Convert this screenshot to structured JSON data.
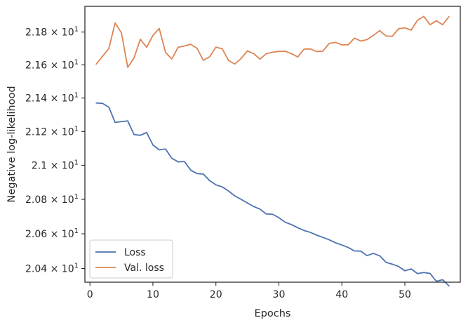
{
  "chart_data": {
    "type": "line",
    "xlabel": "Epochs",
    "ylabel": "Negative log-likelihood",
    "xlim": [
      -0.8,
      58.8
    ],
    "ylim": [
      20.322,
      21.958
    ],
    "yscale": "log",
    "grid": false,
    "legend_position": "lower-left",
    "x_ticks": [
      0,
      10,
      20,
      30,
      40,
      50
    ],
    "x_tick_labels": [
      "0",
      "10",
      "20",
      "30",
      "40",
      "50"
    ],
    "y_ticks": [
      20.4,
      20.6,
      20.8,
      21.0,
      21.2,
      21.4,
      21.6,
      21.8
    ],
    "y_tick_labels": [
      {
        "mantissa": "2.04",
        "sep": "×",
        "base": "10",
        "exp": "1"
      },
      {
        "mantissa": "2.06",
        "sep": "×",
        "base": "10",
        "exp": "1"
      },
      {
        "mantissa": "2.08",
        "sep": "×",
        "base": "10",
        "exp": "1"
      },
      {
        "mantissa": "2.1",
        "sep": "×",
        "base": "10",
        "exp": "1"
      },
      {
        "mantissa": "2.12",
        "sep": "×",
        "base": "10",
        "exp": "1"
      },
      {
        "mantissa": "2.14",
        "sep": "×",
        "base": "10",
        "exp": "1"
      },
      {
        "mantissa": "2.16",
        "sep": "×",
        "base": "10",
        "exp": "1"
      },
      {
        "mantissa": "2.18",
        "sep": "×",
        "base": "10",
        "exp": "1"
      }
    ],
    "x": [
      1,
      2,
      3,
      4,
      5,
      6,
      7,
      8,
      9,
      10,
      11,
      12,
      13,
      14,
      15,
      16,
      17,
      18,
      19,
      20,
      21,
      22,
      23,
      24,
      25,
      26,
      27,
      28,
      29,
      30,
      31,
      32,
      33,
      34,
      35,
      36,
      37,
      38,
      39,
      40,
      41,
      42,
      43,
      44,
      45,
      46,
      47,
      48,
      49,
      50,
      51,
      52,
      53,
      54,
      55,
      56,
      57
    ],
    "series": [
      {
        "name": "Loss",
        "color": "#4c72b0",
        "values": [
          21.37,
          21.368,
          21.345,
          21.254,
          21.259,
          21.263,
          21.182,
          21.177,
          21.194,
          21.12,
          21.091,
          21.096,
          21.041,
          21.02,
          21.022,
          20.971,
          20.951,
          20.948,
          20.91,
          20.885,
          20.873,
          20.849,
          20.82,
          20.8,
          20.779,
          20.758,
          20.743,
          20.715,
          20.713,
          20.693,
          20.667,
          20.653,
          20.635,
          20.619,
          20.608,
          20.592,
          20.579,
          20.565,
          20.548,
          20.535,
          20.521,
          20.501,
          20.5,
          20.474,
          20.487,
          20.473,
          20.436,
          20.425,
          20.412,
          20.387,
          20.398,
          20.371,
          20.377,
          20.372,
          20.327,
          20.336,
          20.301
        ]
      },
      {
        "name": "Val. loss",
        "color": "#dd8452",
        "values": [
          21.605,
          21.652,
          21.699,
          21.856,
          21.795,
          21.585,
          21.642,
          21.756,
          21.707,
          21.779,
          21.822,
          21.676,
          21.636,
          21.707,
          21.715,
          21.725,
          21.701,
          21.628,
          21.649,
          21.708,
          21.698,
          21.627,
          21.605,
          21.639,
          21.685,
          21.668,
          21.635,
          21.668,
          21.677,
          21.682,
          21.683,
          21.668,
          21.648,
          21.696,
          21.697,
          21.681,
          21.684,
          21.731,
          21.737,
          21.722,
          21.722,
          21.763,
          21.745,
          21.754,
          21.779,
          21.809,
          21.776,
          21.774,
          21.82,
          21.826,
          21.812,
          21.872,
          21.896,
          21.845,
          21.869,
          21.845,
          21.894
        ]
      }
    ]
  }
}
